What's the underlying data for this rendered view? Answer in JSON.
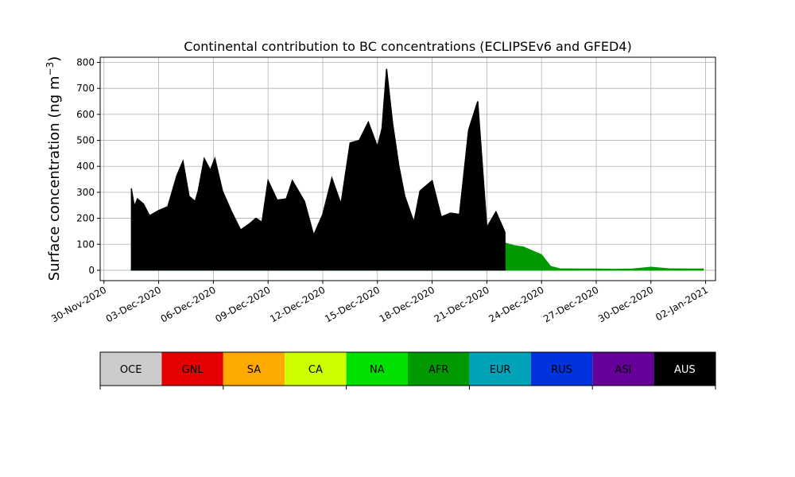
{
  "chart_data": {
    "type": "area",
    "stacked": true,
    "title": "Continental contribution to BC concentrations (ECLIPSEv6 and GFED4)",
    "ylabel": "Surface concentration (ng m",
    "ylabel_unit_exp": "−3",
    "ylabel_close": ")",
    "xlabel": "",
    "grid": true,
    "ylim": [
      -40,
      820
    ],
    "xlim": [
      "2020-11-29T19:00",
      "2021-01-02T13:00"
    ],
    "yticks": [
      0,
      100,
      200,
      300,
      400,
      500,
      600,
      700,
      800
    ],
    "xticks": [
      {
        "date": "2020-11-30",
        "label": "30-Nov-2020"
      },
      {
        "date": "2020-12-03",
        "label": "03-Dec-2020"
      },
      {
        "date": "2020-12-06",
        "label": "06-Dec-2020"
      },
      {
        "date": "2020-12-09",
        "label": "09-Dec-2020"
      },
      {
        "date": "2020-12-12",
        "label": "12-Dec-2020"
      },
      {
        "date": "2020-12-15",
        "label": "15-Dec-2020"
      },
      {
        "date": "2020-12-18",
        "label": "18-Dec-2020"
      },
      {
        "date": "2020-12-21",
        "label": "21-Dec-2020"
      },
      {
        "date": "2020-12-24",
        "label": "24-Dec-2020"
      },
      {
        "date": "2020-12-27",
        "label": "27-Dec-2020"
      },
      {
        "date": "2020-12-30",
        "label": "30-Dec-2020"
      },
      {
        "date": "2021-01-02",
        "label": "02-Jan-2021"
      }
    ],
    "legend_placement": "bottom (colorbar style)",
    "legend": [
      {
        "name": "OCE",
        "color": "#cccccc",
        "text_color": "#000000"
      },
      {
        "name": "GNL",
        "color": "#e60000",
        "text_color": "#000000"
      },
      {
        "name": "SA",
        "color": "#ffaa00",
        "text_color": "#000000"
      },
      {
        "name": "CA",
        "color": "#ccff00",
        "text_color": "#000000"
      },
      {
        "name": "NA",
        "color": "#00e000",
        "text_color": "#000000"
      },
      {
        "name": "AFR",
        "color": "#009900",
        "text_color": "#000000"
      },
      {
        "name": "EUR",
        "color": "#00a3b8",
        "text_color": "#000000"
      },
      {
        "name": "RUS",
        "color": "#0033dd",
        "text_color": "#000000"
      },
      {
        "name": "ASI",
        "color": "#660099",
        "text_color": "#000000"
      },
      {
        "name": "AUS",
        "color": "#000000",
        "text_color": "#ffffff"
      }
    ],
    "series": [
      {
        "name": "NA",
        "color": "#00e000",
        "points": [
          [
            "2020-12-01T12:00",
            5
          ],
          [
            "2020-12-02T00:00",
            15
          ],
          [
            "2020-12-02T12:00",
            12
          ],
          [
            "2020-12-03T00:00",
            8
          ],
          [
            "2020-12-04T00:00",
            6
          ],
          [
            "2020-12-05T00:00",
            4
          ],
          [
            "2020-12-06T00:00",
            6
          ],
          [
            "2020-12-07T00:00",
            12
          ],
          [
            "2020-12-07T12:00",
            20
          ],
          [
            "2020-12-08T00:00",
            8
          ],
          [
            "2020-12-09T00:00",
            4
          ],
          [
            "2020-12-10T00:00",
            5
          ],
          [
            "2020-12-11T00:00",
            6
          ],
          [
            "2020-12-12T00:00",
            5
          ],
          [
            "2020-12-13T00:00",
            4
          ],
          [
            "2020-12-14T00:00",
            10
          ],
          [
            "2020-12-15T00:00",
            6
          ],
          [
            "2020-12-16T00:00",
            5
          ],
          [
            "2020-12-17T00:00",
            6
          ],
          [
            "2020-12-18T00:00",
            8
          ],
          [
            "2020-12-19T00:00",
            10
          ],
          [
            "2020-12-20T00:00",
            12
          ],
          [
            "2020-12-21T00:00",
            6
          ],
          [
            "2020-12-22T00:00",
            5
          ],
          [
            "2020-12-23T00:00",
            4
          ],
          [
            "2020-12-24T00:00",
            3
          ],
          [
            "2020-12-25T00:00",
            2
          ],
          [
            "2020-12-26T00:00",
            3
          ],
          [
            "2020-12-27T00:00",
            3
          ],
          [
            "2020-12-28T00:00",
            2
          ],
          [
            "2020-12-29T00:00",
            3
          ],
          [
            "2020-12-30T00:00",
            8
          ],
          [
            "2020-12-31T00:00",
            4
          ],
          [
            "2021-01-01T00:00",
            3
          ],
          [
            "2021-01-01T21:00",
            3
          ]
        ]
      },
      {
        "name": "AFR",
        "color": "#009900",
        "points": [
          [
            "2020-12-01T12:00",
            5
          ],
          [
            "2020-12-01T20:00",
            60
          ],
          [
            "2020-12-02T04:00",
            15
          ],
          [
            "2020-12-02T12:00",
            12
          ],
          [
            "2020-12-03T00:00",
            10
          ],
          [
            "2020-12-04T00:00",
            8
          ],
          [
            "2020-12-05T00:00",
            6
          ],
          [
            "2020-12-06T00:00",
            8
          ],
          [
            "2020-12-07T00:00",
            14
          ],
          [
            "2020-12-07T12:00",
            25
          ],
          [
            "2020-12-08T00:00",
            10
          ],
          [
            "2020-12-09T00:00",
            6
          ],
          [
            "2020-12-10T00:00",
            7
          ],
          [
            "2020-12-11T00:00",
            8
          ],
          [
            "2020-12-12T00:00",
            7
          ],
          [
            "2020-12-13T00:00",
            6
          ],
          [
            "2020-12-14T00:00",
            14
          ],
          [
            "2020-12-15T00:00",
            9
          ],
          [
            "2020-12-16T00:00",
            8
          ],
          [
            "2020-12-17T00:00",
            9
          ],
          [
            "2020-12-18T00:00",
            12
          ],
          [
            "2020-12-19T00:00",
            15
          ],
          [
            "2020-12-19T12:00",
            40
          ],
          [
            "2020-12-20T00:00",
            25
          ],
          [
            "2020-12-20T12:00",
            30
          ],
          [
            "2020-12-21T00:00",
            20
          ],
          [
            "2020-12-21T12:00",
            35
          ],
          [
            "2020-12-22T00:00",
            105
          ],
          [
            "2020-12-22T12:00",
            95
          ],
          [
            "2020-12-23T00:00",
            90
          ],
          [
            "2020-12-23T12:00",
            75
          ],
          [
            "2020-12-24T00:00",
            60
          ],
          [
            "2020-12-24T12:00",
            15
          ],
          [
            "2020-12-25T00:00",
            6
          ],
          [
            "2020-12-26T00:00",
            5
          ],
          [
            "2020-12-27T00:00",
            5
          ],
          [
            "2020-12-28T00:00",
            4
          ],
          [
            "2020-12-29T00:00",
            5
          ],
          [
            "2020-12-30T00:00",
            12
          ],
          [
            "2020-12-31T00:00",
            6
          ],
          [
            "2021-01-01T00:00",
            5
          ],
          [
            "2021-01-01T21:00",
            5
          ]
        ]
      },
      {
        "name": "EUR",
        "color": "#00a3b8",
        "points": [
          [
            "2020-12-01T12:00",
            310
          ],
          [
            "2020-12-01T16:00",
            240
          ],
          [
            "2020-12-01T20:00",
            270
          ],
          [
            "2020-12-02T04:00",
            250
          ],
          [
            "2020-12-02T12:00",
            205
          ],
          [
            "2020-12-03T00:00",
            225
          ],
          [
            "2020-12-03T12:00",
            240
          ],
          [
            "2020-12-04T00:00",
            360
          ],
          [
            "2020-12-04T08:00",
            410
          ],
          [
            "2020-12-04T16:00",
            280
          ],
          [
            "2020-12-05T00:00",
            260
          ],
          [
            "2020-12-05T04:00",
            300
          ],
          [
            "2020-12-05T12:00",
            420
          ],
          [
            "2020-12-05T20:00",
            380
          ],
          [
            "2020-12-06T02:00",
            420
          ],
          [
            "2020-12-06T12:00",
            300
          ],
          [
            "2020-12-07T00:00",
            220
          ],
          [
            "2020-12-07T12:00",
            150
          ],
          [
            "2020-12-08T00:00",
            175
          ],
          [
            "2020-12-08T08:00",
            195
          ],
          [
            "2020-12-08T16:00",
            180
          ],
          [
            "2020-12-09T00:00",
            335
          ],
          [
            "2020-12-09T12:00",
            265
          ],
          [
            "2020-12-10T00:00",
            270
          ],
          [
            "2020-12-10T08:00",
            335
          ],
          [
            "2020-12-11T00:00",
            260
          ],
          [
            "2020-12-11T12:00",
            130
          ],
          [
            "2020-12-12T00:00",
            210
          ],
          [
            "2020-12-12T12:00",
            345
          ],
          [
            "2020-12-13T00:00",
            250
          ],
          [
            "2020-12-13T12:00",
            480
          ],
          [
            "2020-12-14T00:00",
            495
          ],
          [
            "2020-12-14T12:00",
            560
          ],
          [
            "2020-12-15T00:00",
            470
          ],
          [
            "2020-12-15T06:00",
            540
          ],
          [
            "2020-12-15T12:00",
            760
          ],
          [
            "2020-12-15T20:00",
            560
          ],
          [
            "2020-12-16T04:00",
            400
          ],
          [
            "2020-12-16T12:00",
            280
          ],
          [
            "2020-12-17T00:00",
            180
          ],
          [
            "2020-12-17T08:00",
            300
          ],
          [
            "2020-12-18T00:00",
            340
          ],
          [
            "2020-12-18T12:00",
            200
          ],
          [
            "2020-12-19T00:00",
            215
          ],
          [
            "2020-12-19T12:00",
            210
          ],
          [
            "2020-12-20T00:00",
            530
          ],
          [
            "2020-12-20T12:00",
            640
          ],
          [
            "2020-12-21T00:00",
            160
          ],
          [
            "2020-12-21T12:00",
            220
          ],
          [
            "2020-12-22T00:00",
            140
          ]
        ]
      },
      {
        "name": "AUS",
        "color": "#000000",
        "points": [
          [
            "2020-12-01T12:00",
            315
          ],
          [
            "2020-12-01T16:00",
            245
          ],
          [
            "2020-12-01T20:00",
            275
          ],
          [
            "2020-12-02T04:00",
            255
          ],
          [
            "2020-12-02T12:00",
            210
          ],
          [
            "2020-12-03T00:00",
            230
          ],
          [
            "2020-12-03T12:00",
            245
          ],
          [
            "2020-12-04T00:00",
            365
          ],
          [
            "2020-12-04T08:00",
            420
          ],
          [
            "2020-12-04T16:00",
            285
          ],
          [
            "2020-12-05T00:00",
            265
          ],
          [
            "2020-12-05T04:00",
            305
          ],
          [
            "2020-12-05T12:00",
            430
          ],
          [
            "2020-12-05T20:00",
            385
          ],
          [
            "2020-12-06T02:00",
            430
          ],
          [
            "2020-12-06T12:00",
            305
          ],
          [
            "2020-12-07T00:00",
            225
          ],
          [
            "2020-12-07T12:00",
            155
          ],
          [
            "2020-12-08T00:00",
            180
          ],
          [
            "2020-12-08T08:00",
            200
          ],
          [
            "2020-12-08T16:00",
            185
          ],
          [
            "2020-12-09T00:00",
            345
          ],
          [
            "2020-12-09T12:00",
            270
          ],
          [
            "2020-12-10T00:00",
            275
          ],
          [
            "2020-12-10T08:00",
            345
          ],
          [
            "2020-12-11T00:00",
            265
          ],
          [
            "2020-12-11T12:00",
            135
          ],
          [
            "2020-12-12T00:00",
            215
          ],
          [
            "2020-12-12T12:00",
            355
          ],
          [
            "2020-12-13T00:00",
            255
          ],
          [
            "2020-12-13T12:00",
            490
          ],
          [
            "2020-12-14T00:00",
            500
          ],
          [
            "2020-12-14T12:00",
            570
          ],
          [
            "2020-12-15T00:00",
            475
          ],
          [
            "2020-12-15T06:00",
            545
          ],
          [
            "2020-12-15T12:00",
            775
          ],
          [
            "2020-12-15T20:00",
            565
          ],
          [
            "2020-12-16T04:00",
            405
          ],
          [
            "2020-12-16T12:00",
            285
          ],
          [
            "2020-12-17T00:00",
            185
          ],
          [
            "2020-12-17T08:00",
            305
          ],
          [
            "2020-12-18T00:00",
            345
          ],
          [
            "2020-12-18T12:00",
            205
          ],
          [
            "2020-12-19T00:00",
            220
          ],
          [
            "2020-12-19T12:00",
            215
          ],
          [
            "2020-12-20T00:00",
            540
          ],
          [
            "2020-12-20T12:00",
            650
          ],
          [
            "2020-12-21T00:00",
            165
          ],
          [
            "2020-12-21T12:00",
            225
          ],
          [
            "2020-12-22T00:00",
            145
          ]
        ]
      }
    ]
  }
}
